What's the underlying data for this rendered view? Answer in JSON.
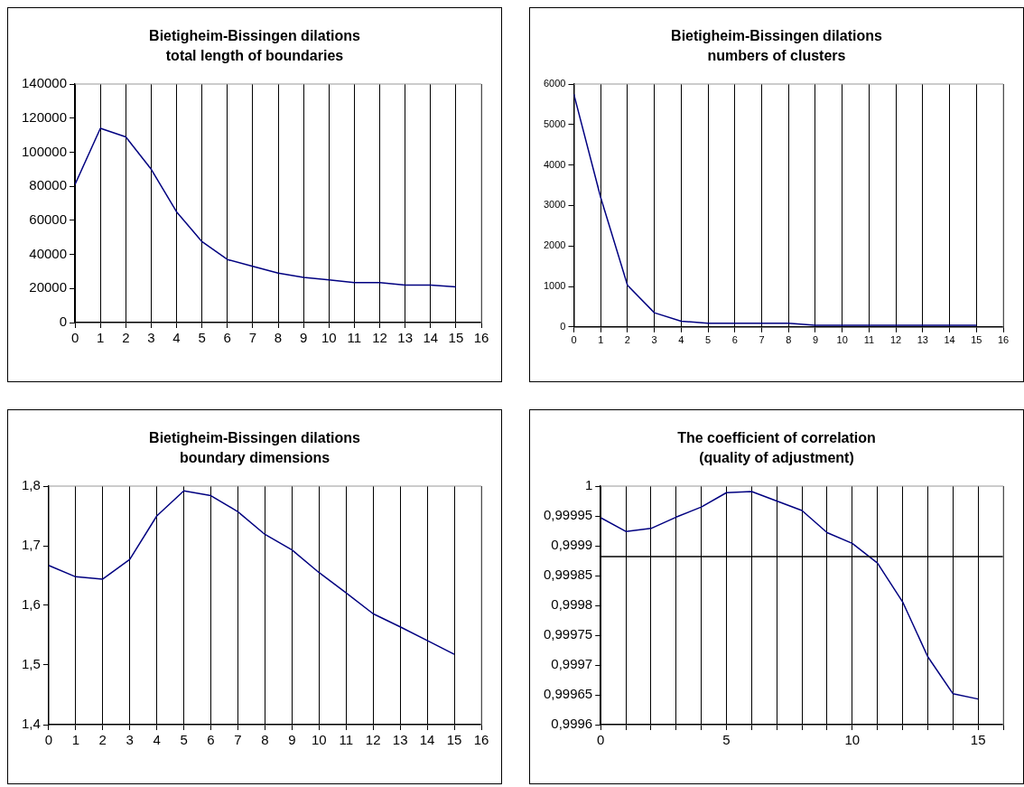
{
  "chart_data": [
    {
      "type": "line",
      "title": "Bietigheim-Bissingen dilations",
      "subtitle": "total length of boundaries",
      "x": [
        0,
        1,
        2,
        3,
        4,
        5,
        6,
        7,
        8,
        9,
        10,
        11,
        12,
        13,
        14,
        15
      ],
      "series": [
        {
          "color": "#000080",
          "values": [
            81000,
            114000,
            109000,
            90000,
            65000,
            47500,
            37000,
            33000,
            29000,
            26500,
            25000,
            23500,
            23500,
            22000,
            22000,
            21000
          ]
        }
      ],
      "xlim": [
        0,
        16
      ],
      "xticks": [
        0,
        1,
        2,
        3,
        4,
        5,
        6,
        7,
        8,
        9,
        10,
        11,
        12,
        13,
        14,
        15,
        16
      ],
      "ylim": [
        0,
        140000
      ],
      "yticks": [
        0,
        20000,
        40000,
        60000,
        80000,
        100000,
        120000,
        140000
      ],
      "grid": "x",
      "legend": false,
      "marker": "none"
    },
    {
      "type": "line",
      "title": "Bietigheim-Bissingen dilations",
      "subtitle": "numbers of clusters",
      "x": [
        0,
        1,
        2,
        3,
        4,
        5,
        6,
        7,
        8,
        9,
        10,
        11,
        12,
        13,
        14,
        15
      ],
      "series": [
        {
          "color": "#000080",
          "values": [
            5750,
            3200,
            1030,
            350,
            140,
            90,
            90,
            90,
            90,
            40,
            40,
            40,
            40,
            40,
            40,
            40
          ]
        }
      ],
      "xlim": [
        0,
        16
      ],
      "xticks": [
        0,
        1,
        2,
        3,
        4,
        5,
        6,
        7,
        8,
        9,
        10,
        11,
        12,
        13,
        14,
        15,
        16
      ],
      "ylim": [
        0,
        6000
      ],
      "yticks": [
        0,
        1000,
        2000,
        3000,
        4000,
        5000,
        6000
      ],
      "grid": "x",
      "legend": false,
      "marker": "none"
    },
    {
      "type": "line",
      "title": "Bietigheim-Bissingen dilations",
      "subtitle": "boundary dimensions",
      "x": [
        0,
        1,
        2,
        3,
        4,
        5,
        6,
        7,
        8,
        9,
        10,
        11,
        12,
        13,
        14,
        15
      ],
      "series": [
        {
          "color": "#000080",
          "values": [
            1.667,
            1.648,
            1.644,
            1.677,
            1.75,
            1.792,
            1.784,
            1.757,
            1.719,
            1.693,
            1.655,
            1.621,
            1.586,
            1.564,
            1.541,
            1.518
          ]
        }
      ],
      "xlim": [
        0,
        16
      ],
      "xticks": [
        0,
        1,
        2,
        3,
        4,
        5,
        6,
        7,
        8,
        9,
        10,
        11,
        12,
        13,
        14,
        15,
        16
      ],
      "ylim": [
        1.4,
        1.8
      ],
      "yticks": [
        {
          "value": 1.4,
          "label": "1,4"
        },
        {
          "value": 1.5,
          "label": "1,5"
        },
        {
          "value": 1.6,
          "label": "1,6"
        },
        {
          "value": 1.7,
          "label": "1,7"
        },
        {
          "value": 1.8,
          "label": "1,8"
        }
      ],
      "grid": "x",
      "legend": false,
      "marker": "none"
    },
    {
      "type": "line",
      "title": "The coefficient of correlation",
      "subtitle": "(quality of adjustment)",
      "x": [
        0,
        1,
        2,
        3,
        4,
        5,
        6,
        7,
        8,
        9,
        10,
        11,
        12,
        13,
        14,
        15
      ],
      "series": [
        {
          "color": "#000080",
          "values": [
            0.999947,
            0.999924,
            0.999929,
            0.999948,
            0.999965,
            0.999989,
            0.999991,
            0.999975,
            0.999959,
            0.999922,
            0.999904,
            0.999871,
            0.999806,
            0.999714,
            0.999652,
            0.999643
          ]
        }
      ],
      "xlim": [
        0,
        16
      ],
      "xticks": [
        0,
        {
          "value": 1,
          "label": null
        },
        {
          "value": 2,
          "label": null
        },
        {
          "value": 3,
          "label": null
        },
        {
          "value": 4,
          "label": null
        },
        5,
        {
          "value": 6,
          "label": null
        },
        {
          "value": 7,
          "label": null
        },
        {
          "value": 8,
          "label": null
        },
        {
          "value": 9,
          "label": null
        },
        10,
        {
          "value": 11,
          "label": null
        },
        {
          "value": 12,
          "label": null
        },
        {
          "value": 13,
          "label": null
        },
        {
          "value": 14,
          "label": null
        },
        15,
        {
          "value": 16,
          "label": null
        }
      ],
      "ylim": [
        0.9996,
        1
      ],
      "yticks": [
        {
          "value": 0.9996,
          "label": "0,9996"
        },
        {
          "value": 0.99965,
          "label": "0,99965"
        },
        {
          "value": 0.9997,
          "label": "0,9997"
        },
        {
          "value": 0.99975,
          "label": "0,99975"
        },
        {
          "value": 0.9998,
          "label": "0,9998"
        },
        {
          "value": 0.99985,
          "label": "0,99985"
        },
        {
          "value": 0.9999,
          "label": "0,9999"
        },
        {
          "value": 0.99995,
          "label": "0,99995"
        },
        1
      ],
      "ref_lines": [
        {
          "axis": "y",
          "value": 0.999882,
          "color": "#000000"
        }
      ],
      "grid": "x",
      "legend": false,
      "marker": "none"
    }
  ]
}
